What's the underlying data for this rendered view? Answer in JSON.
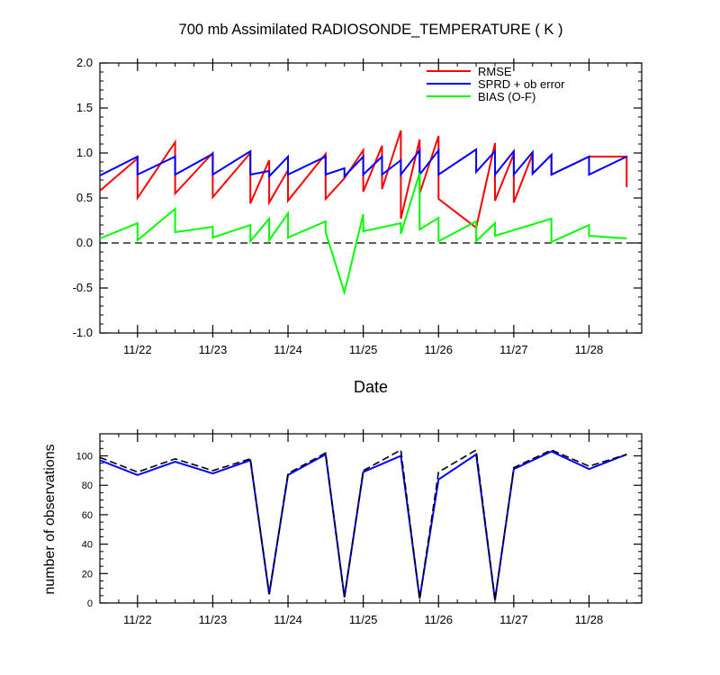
{
  "chart_data": [
    {
      "type": "line",
      "title": "700 mb Assimilated RADIOSONDE_TEMPERATURE ( K )",
      "xlabel": "Date",
      "ylabel": "",
      "xlim": [
        0,
        7.2
      ],
      "ylim": [
        -1.0,
        2.0
      ],
      "x_ticks": [
        0.5,
        1.5,
        2.5,
        3.5,
        4.5,
        5.5,
        6.5
      ],
      "x_tick_labels": [
        "11/22",
        "11/23",
        "11/24",
        "11/25",
        "11/26",
        "11/27",
        "11/28"
      ],
      "y_ticks": [
        -1.0,
        -0.5,
        0.0,
        0.5,
        1.0,
        1.5,
        2.0
      ],
      "y_tick_labels": [
        "-1.0",
        "-0.5",
        "0.0",
        "0.5",
        "1.0",
        "1.5",
        "2.0"
      ],
      "reference_line": {
        "y": 0.0,
        "style": "dashed",
        "color": "#000000"
      },
      "legend_placement": "top-right",
      "series": [
        {
          "name": "RMSE",
          "color": "#ff0000",
          "x": [
            0,
            0.5,
            0.5,
            1.0,
            1.0,
            1.5,
            1.5,
            2.0,
            2.0,
            2.25,
            2.25,
            2.5,
            2.5,
            3.0,
            3.0,
            3.25,
            3.25,
            3.5,
            3.5,
            3.75,
            3.75,
            4.0,
            4.0,
            4.25,
            4.25,
            4.5,
            4.5,
            5.0,
            5.0,
            5.25,
            5.25,
            5.5,
            5.5,
            5.75,
            5.75,
            6.0,
            6.0,
            6.5,
            6.5,
            7.0,
            7.0
          ],
          "y": [
            0.58,
            0.94,
            0.5,
            1.12,
            0.55,
            1.0,
            0.51,
            1.0,
            0.44,
            0.92,
            0.45,
            0.81,
            0.47,
            0.99,
            0.49,
            0.72,
            0.72,
            1.03,
            0.57,
            1.08,
            0.6,
            1.25,
            0.27,
            1.15,
            0.55,
            1.19,
            0.49,
            0.17,
            0.17,
            1.11,
            0.47,
            0.99,
            0.45,
            0.99,
            0.77,
            0.98,
            0.76,
            0.96,
            0.96,
            0.96,
            0.62
          ]
        },
        {
          "name": "SPRD + ob error",
          "color": "#0000ff",
          "x": [
            0,
            0.5,
            0.5,
            1.0,
            1.0,
            1.5,
            1.5,
            2.0,
            2.0,
            2.25,
            2.25,
            2.5,
            2.5,
            3.0,
            3.0,
            3.25,
            3.25,
            3.5,
            3.5,
            3.75,
            3.75,
            4.0,
            4.0,
            4.25,
            4.25,
            4.5,
            4.5,
            5.0,
            5.0,
            5.25,
            5.25,
            5.5,
            5.5,
            5.75,
            5.75,
            6.0,
            6.0,
            6.5,
            6.5,
            7.0
          ],
          "y": [
            0.75,
            0.96,
            0.76,
            0.96,
            0.76,
            0.99,
            0.76,
            1.02,
            0.76,
            0.8,
            0.74,
            0.96,
            0.76,
            0.96,
            0.76,
            0.83,
            0.74,
            0.96,
            0.76,
            0.96,
            0.76,
            0.92,
            0.76,
            1.03,
            0.76,
            1.03,
            0.76,
            1.04,
            0.79,
            1.02,
            0.76,
            1.02,
            0.76,
            1.01,
            0.77,
            0.98,
            0.76,
            0.96,
            0.76,
            0.96
          ]
        },
        {
          "name": "BIAS (O-F)",
          "color": "#00ff00",
          "x": [
            0,
            0.5,
            0.5,
            1.0,
            1.0,
            1.5,
            1.5,
            2.0,
            2.0,
            2.25,
            2.25,
            2.5,
            2.5,
            3.0,
            3.0,
            3.25,
            3.5,
            3.5,
            4.0,
            4.0,
            4.25,
            4.25,
            4.5,
            4.5,
            5.0,
            5.0,
            5.25,
            5.25,
            6.0,
            6.0,
            6.5,
            6.5,
            7.0
          ],
          "y": [
            0.05,
            0.22,
            0.03,
            0.38,
            0.12,
            0.18,
            0.06,
            0.2,
            0.02,
            0.27,
            0.03,
            0.33,
            0.06,
            0.24,
            0.12,
            -0.55,
            0.32,
            0.13,
            0.22,
            0.1,
            0.78,
            0.15,
            0.28,
            0.02,
            0.24,
            0.02,
            0.22,
            0.08,
            0.27,
            0.01,
            0.2,
            0.08,
            0.05
          ]
        }
      ]
    },
    {
      "type": "line",
      "title": "",
      "xlabel": "",
      "ylabel": "number of observations",
      "xlim": [
        0,
        7.2
      ],
      "ylim": [
        0,
        115
      ],
      "x_ticks": [
        0.5,
        1.5,
        2.5,
        3.5,
        4.5,
        5.5,
        6.5
      ],
      "x_tick_labels": [
        "11/22",
        "11/23",
        "11/24",
        "11/25",
        "11/26",
        "11/27",
        "11/28"
      ],
      "y_ticks": [
        0,
        20,
        40,
        60,
        80,
        100
      ],
      "y_tick_labels": [
        "0",
        "20",
        "40",
        "60",
        "80",
        "100"
      ],
      "series": [
        {
          "color": "#0000ff",
          "style": "solid",
          "x": [
            0,
            0.5,
            1.0,
            1.5,
            2.0,
            2.25,
            2.5,
            3.0,
            3.25,
            3.5,
            4.0,
            4.25,
            4.5,
            5.0,
            5.25,
            5.5,
            6.0,
            6.5,
            7.0
          ],
          "y": [
            97,
            87,
            96,
            88,
            97,
            6,
            87,
            101,
            4,
            89,
            100,
            3,
            84,
            101,
            2,
            91,
            103,
            91,
            101
          ]
        },
        {
          "color": "#000000",
          "style": "dashed",
          "x": [
            0,
            0.5,
            1.0,
            1.5,
            2.0,
            2.25,
            2.5,
            3.0,
            3.25,
            3.5,
            4.0,
            4.25,
            4.5,
            5.0,
            5.25,
            5.5,
            6.0,
            6.5,
            7.0
          ],
          "y": [
            99,
            89,
            98,
            90,
            98,
            6,
            88,
            102,
            4,
            90,
            104,
            3,
            89,
            104,
            2,
            92,
            104,
            93,
            101
          ]
        }
      ]
    }
  ]
}
